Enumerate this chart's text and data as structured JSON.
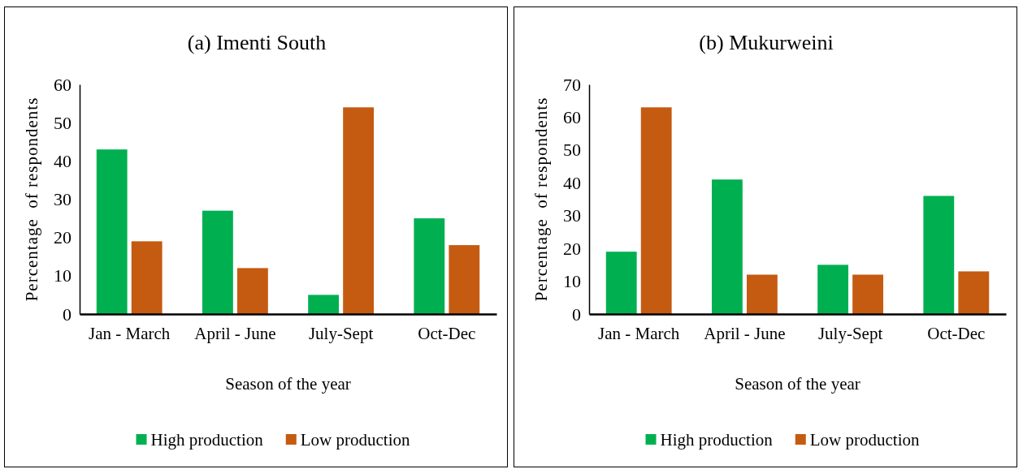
{
  "chart_data": [
    {
      "type": "bar",
      "title": "(a) Imenti South",
      "xlabel": "Season of the year",
      "ylabel": "Percentage  of respondents",
      "categories": [
        "Jan - March",
        "April - June",
        "July-Sept",
        "Oct-Dec"
      ],
      "series": [
        {
          "name": "High production",
          "color": "#00b050",
          "values": [
            43,
            27,
            5,
            25
          ]
        },
        {
          "name": "Low production",
          "color": "#c55a11",
          "values": [
            19,
            12,
            54,
            18
          ]
        }
      ],
      "ylim": [
        0,
        60
      ],
      "yticks": [
        0,
        10,
        20,
        30,
        40,
        50,
        60
      ],
      "legend": "bottom",
      "grid": false
    },
    {
      "type": "bar",
      "title": "(b) Mukurweini",
      "xlabel": "Season of the year",
      "ylabel": "Percentage  of respondents",
      "categories": [
        "Jan - March",
        "April - June",
        "July-Sept",
        "Oct-Dec"
      ],
      "series": [
        {
          "name": "High production",
          "color": "#00b050",
          "values": [
            19,
            41,
            15,
            36
          ]
        },
        {
          "name": "Low production",
          "color": "#c55a11",
          "values": [
            63,
            12,
            12,
            13
          ]
        }
      ],
      "ylim": [
        0,
        70
      ],
      "yticks": [
        0,
        10,
        20,
        30,
        40,
        50,
        60,
        70
      ],
      "legend": "bottom",
      "grid": false
    }
  ]
}
